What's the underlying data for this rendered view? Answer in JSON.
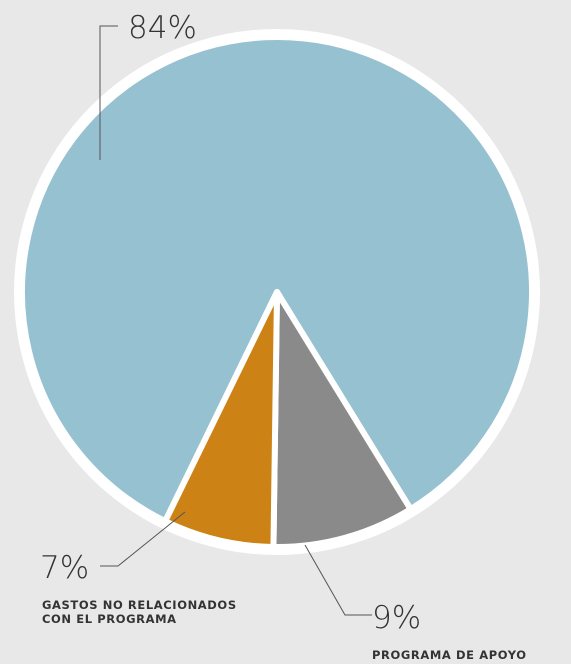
{
  "chart_data": {
    "type": "pie",
    "title": "",
    "legend": "none",
    "slices": [
      {
        "label": "",
        "value_label": "84%",
        "value": 84,
        "color": "#96c1d1"
      },
      {
        "label": "PROGRAMA DE APOYO",
        "value_label": "9%",
        "value": 9,
        "color": "#8a8a8a"
      },
      {
        "label_lines": [
          "GASTOS NO RELACIONADOS",
          "CON EL PROGRAMA"
        ],
        "value_label": "7%",
        "value": 7,
        "color": "#cc8214"
      }
    ]
  }
}
